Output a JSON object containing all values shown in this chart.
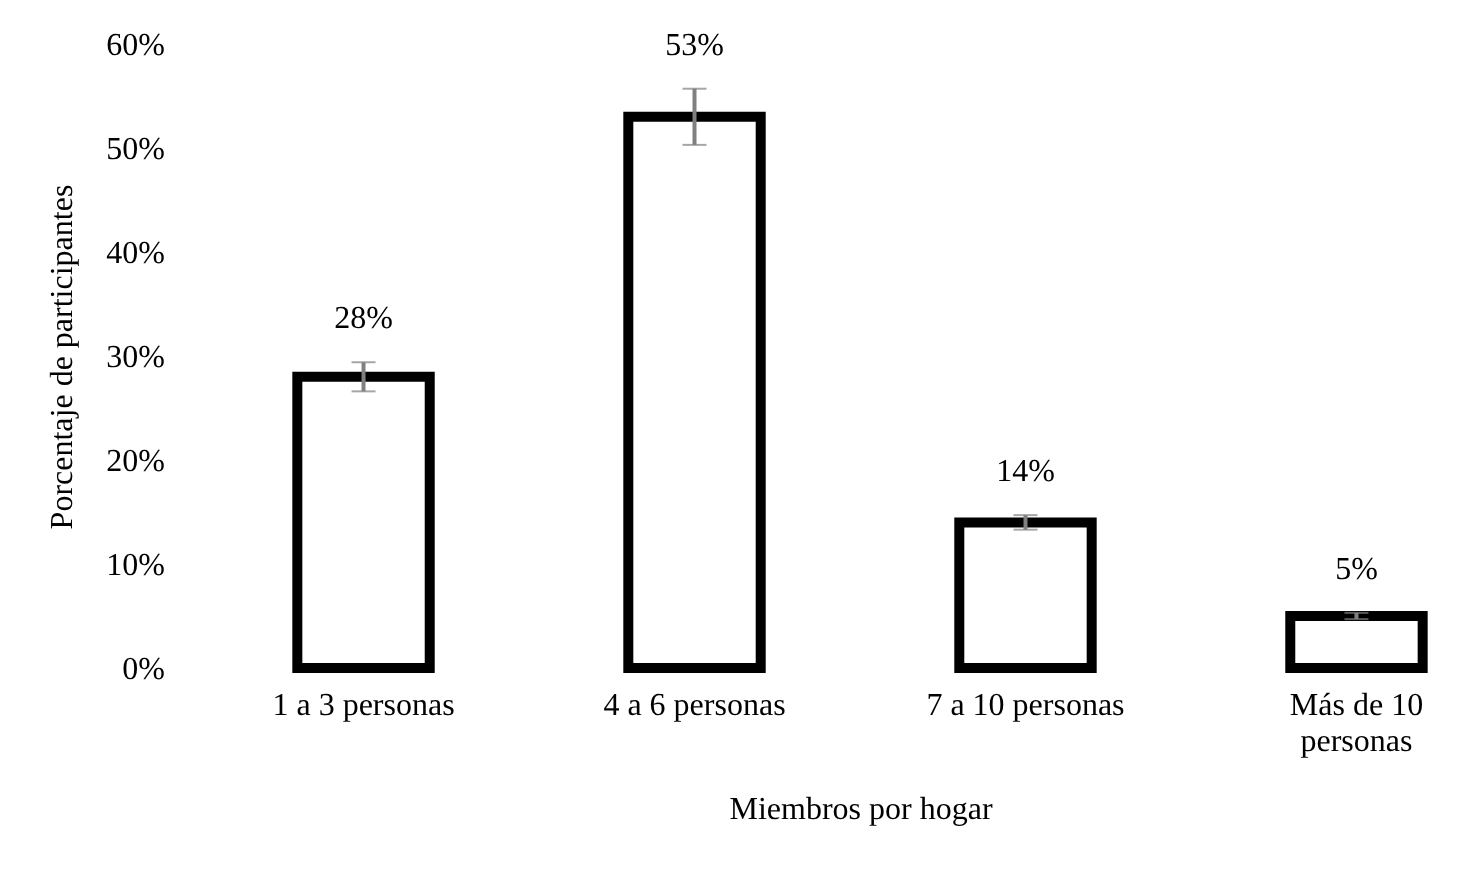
{
  "chart_data": {
    "type": "bar",
    "xlabel": "Miembros por hogar",
    "ylabel": "Porcentaje de participantes",
    "categories": [
      "1 a 3 personas",
      "4 a 6 personas",
      "7 a 10 personas",
      "Más de 10 personas"
    ],
    "values": [
      28,
      53,
      14,
      5
    ],
    "color": "#000000",
    "errors": [
      1.4,
      2.7,
      0.7,
      0.3
    ],
    "value_labels": [
      "28%",
      "53%",
      "14%",
      "5%"
    ],
    "ylim": [
      0,
      60
    ],
    "yticks": [
      {
        "value": 0,
        "label": "0%"
      },
      {
        "value": 10,
        "label": "10%"
      },
      {
        "value": 20,
        "label": "20%"
      },
      {
        "value": 30,
        "label": "30%"
      },
      {
        "value": 40,
        "label": "40%"
      },
      {
        "value": 50,
        "label": "50%"
      },
      {
        "value": 60,
        "label": "60%"
      }
    ],
    "grid": false
  }
}
